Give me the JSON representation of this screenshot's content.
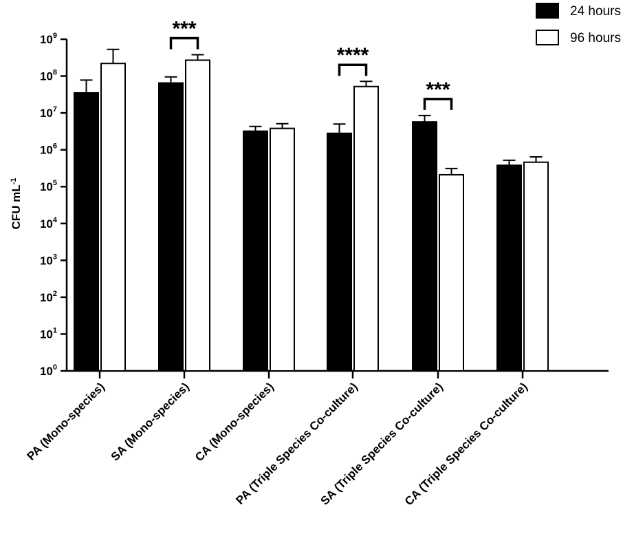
{
  "chart_data": {
    "type": "bar",
    "ylabel": "CFU mL",
    "ylabel_superscript": "-1",
    "yscale": "log",
    "ylim": [
      1,
      1000000000
    ],
    "yticks": [
      {
        "base": "10",
        "exp": "0",
        "value": 1
      },
      {
        "base": "10",
        "exp": "1",
        "value": 10
      },
      {
        "base": "10",
        "exp": "2",
        "value": 100
      },
      {
        "base": "10",
        "exp": "3",
        "value": 1000
      },
      {
        "base": "10",
        "exp": "4",
        "value": 10000
      },
      {
        "base": "10",
        "exp": "5",
        "value": 100000
      },
      {
        "base": "10",
        "exp": "6",
        "value": 1000000
      },
      {
        "base": "10",
        "exp": "7",
        "value": 10000000
      },
      {
        "base": "10",
        "exp": "8",
        "value": 100000000
      },
      {
        "base": "10",
        "exp": "9",
        "value": 1000000000
      }
    ],
    "categories": [
      "PA (Mono-species)",
      "SA (Mono-species)",
      "CA (Mono-species)",
      "PA (Triple Species Co-culture)",
      "SA (Triple Species Co-culture)",
      "CA (Triple Species Co-culture)"
    ],
    "series": [
      {
        "name": "24 hours",
        "color": "#000000",
        "values": [
          35000000,
          65000000,
          3200000,
          2800000,
          5700000,
          380000
        ],
        "error_upper": [
          78000000,
          95000000,
          4300000,
          5000000,
          8500000,
          520000
        ]
      },
      {
        "name": "96 hours",
        "color": "#ffffff",
        "values": [
          220000000,
          270000000,
          3800000,
          52000000,
          210000,
          460000
        ],
        "error_upper": [
          530000000,
          380000000,
          5100000,
          72000000,
          310000,
          640000
        ]
      }
    ],
    "significance": [
      {
        "category_index": 1,
        "label": "***"
      },
      {
        "category_index": 3,
        "label": "****"
      },
      {
        "category_index": 4,
        "label": "***"
      }
    ],
    "legend": "top-right",
    "grid": false
  }
}
